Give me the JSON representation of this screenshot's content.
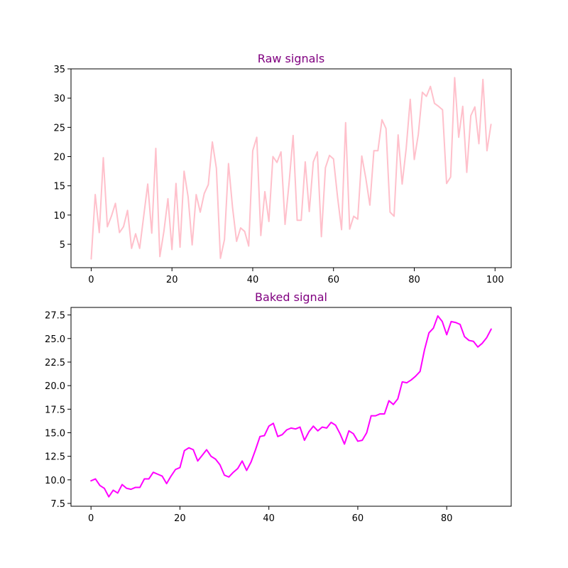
{
  "colors": {
    "title": "#800080",
    "raw_line": "#ffc0cb",
    "baked_line": "#ff00ff"
  },
  "chart_data": [
    {
      "type": "line",
      "title": "Raw signals",
      "xlabel": "",
      "ylabel": "",
      "xlim": [
        -5,
        104
      ],
      "ylim": [
        1.0,
        35.0
      ],
      "x_ticks": [
        0,
        20,
        40,
        60,
        80,
        100
      ],
      "y_ticks": [
        5,
        10,
        15,
        20,
        25,
        30,
        35
      ],
      "grid": false,
      "series": [
        {
          "color": "#ffc0cb",
          "x": [
            0,
            1,
            2,
            3,
            4,
            5,
            6,
            7,
            8,
            9,
            10,
            11,
            12,
            13,
            14,
            15,
            16,
            17,
            18,
            19,
            20,
            21,
            22,
            23,
            24,
            25,
            26,
            27,
            28,
            29,
            30,
            31,
            32,
            33,
            34,
            35,
            36,
            37,
            38,
            39,
            40,
            41,
            42,
            43,
            44,
            45,
            46,
            47,
            48,
            49,
            50,
            51,
            52,
            53,
            54,
            55,
            56,
            57,
            58,
            59,
            60,
            61,
            62,
            63,
            64,
            65,
            66,
            67,
            68,
            69,
            70,
            71,
            72,
            73,
            74,
            75,
            76,
            77,
            78,
            79,
            80,
            81,
            82,
            83,
            84,
            85,
            86,
            87,
            88,
            89,
            90,
            91,
            92,
            93,
            94,
            95,
            96,
            97,
            98,
            99
          ],
          "values": [
            2.5,
            13.5,
            7.0,
            19.8,
            8.0,
            9.8,
            12.0,
            7.0,
            8.0,
            10.8,
            4.3,
            6.8,
            4.3,
            9.8,
            15.3,
            6.9,
            21.4,
            2.9,
            7.2,
            12.8,
            4.1,
            15.4,
            4.5,
            17.5,
            13.1,
            4.9,
            13.5,
            10.5,
            13.7,
            15.2,
            22.5,
            18.0,
            2.6,
            5.8,
            18.8,
            11.3,
            5.5,
            7.8,
            7.2,
            4.7,
            21.0,
            23.3,
            6.5,
            14.0,
            8.9,
            20.0,
            19.0,
            20.8,
            8.4,
            15.5,
            23.6,
            9.1,
            9.1,
            19.1,
            10.6,
            19.1,
            20.8,
            6.3,
            18.1,
            20.2,
            19.6,
            13.1,
            7.5,
            25.8,
            7.6,
            9.8,
            9.3,
            20.1,
            16.3,
            11.7,
            21.0,
            21.0,
            26.3,
            24.8,
            10.5,
            9.8,
            23.7,
            15.3,
            21.4,
            29.8,
            19.5,
            23.8,
            31.0,
            30.3,
            32.0,
            29.1,
            28.6,
            28.0,
            15.4,
            16.5,
            33.5,
            23.3,
            28.6,
            17.3,
            27.0,
            28.5,
            22.2,
            33.2,
            21.0,
            25.5
          ]
        }
      ]
    },
    {
      "type": "line",
      "title": "Baked signal",
      "xlabel": "",
      "ylabel": "",
      "xlim": [
        -4.5,
        94.5
      ],
      "ylim": [
        7.2,
        28.3
      ],
      "x_ticks": [
        0,
        20,
        40,
        60,
        80
      ],
      "y_ticks": [
        7.5,
        10.0,
        12.5,
        15.0,
        17.5,
        20.0,
        22.5,
        25.0,
        27.5
      ],
      "grid": false,
      "series": [
        {
          "color": "#ff00ff",
          "x": [
            0,
            1,
            2,
            3,
            4,
            5,
            6,
            7,
            8,
            9,
            10,
            11,
            12,
            13,
            14,
            15,
            16,
            17,
            18,
            19,
            20,
            21,
            22,
            23,
            24,
            25,
            26,
            27,
            28,
            29,
            30,
            31,
            32,
            33,
            34,
            35,
            36,
            37,
            38,
            39,
            40,
            41,
            42,
            43,
            44,
            45,
            46,
            47,
            48,
            49,
            50,
            51,
            52,
            53,
            54,
            55,
            56,
            57,
            58,
            59,
            60,
            61,
            62,
            63,
            64,
            65,
            66,
            67,
            68,
            69,
            70,
            71,
            72,
            73,
            74,
            75,
            76,
            77,
            78,
            79,
            80,
            81,
            82,
            83,
            84,
            85,
            86,
            87,
            88,
            89,
            90
          ],
          "values": [
            9.9,
            10.1,
            9.4,
            9.1,
            8.2,
            8.9,
            8.6,
            9.5,
            9.1,
            9.0,
            9.2,
            9.2,
            10.1,
            10.1,
            10.8,
            10.6,
            10.4,
            9.6,
            10.4,
            11.1,
            11.3,
            13.1,
            13.4,
            13.2,
            12.0,
            12.6,
            13.2,
            12.5,
            12.2,
            11.6,
            10.5,
            10.3,
            10.8,
            11.2,
            12.0,
            11.0,
            11.9,
            13.2,
            14.6,
            14.7,
            15.7,
            16.0,
            14.6,
            14.8,
            15.3,
            15.5,
            15.4,
            15.6,
            14.2,
            15.1,
            15.7,
            15.2,
            15.6,
            15.5,
            16.1,
            15.8,
            14.9,
            13.8,
            15.2,
            14.9,
            14.1,
            14.2,
            15.0,
            16.8,
            16.8,
            17.0,
            17.0,
            18.4,
            18.0,
            18.6,
            20.4,
            20.3,
            20.6,
            21.0,
            21.5,
            23.8,
            25.6,
            26.1,
            27.4,
            26.8,
            25.4,
            26.8,
            26.7,
            26.5,
            25.2,
            24.8,
            24.7,
            24.1,
            24.5,
            25.1,
            26.0
          ]
        }
      ]
    }
  ]
}
